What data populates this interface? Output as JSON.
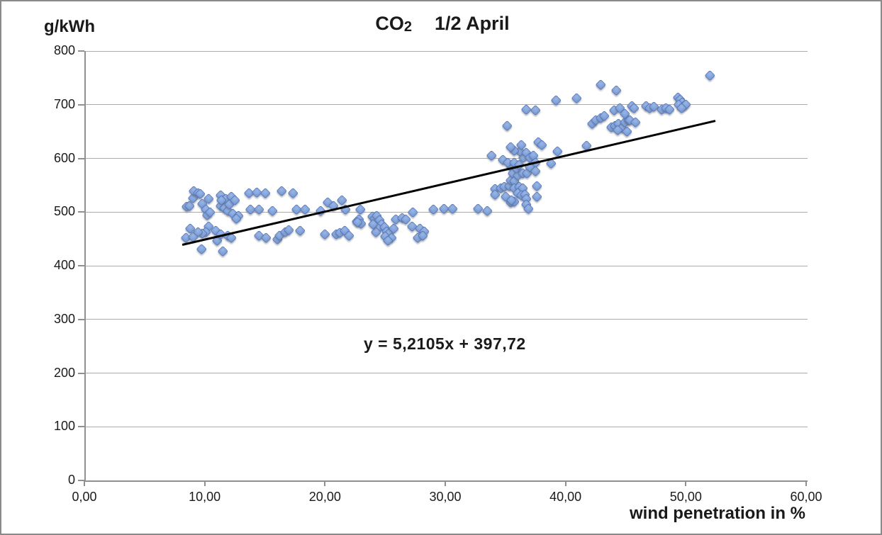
{
  "chart": {
    "y_axis_title": "g/kWh",
    "x_axis_title": "wind penetration in %",
    "title_co": "CO",
    "title_sub": "2",
    "title_period": "1/2 April",
    "equation": "y = 5,2105x + 397,72"
  },
  "chart_data": {
    "type": "scatter",
    "title": "CO2 1/2 April",
    "xlabel": "wind penetration in %",
    "ylabel": "g/kWh",
    "xlim": [
      0,
      60
    ],
    "ylim": [
      0,
      800
    ],
    "grid": "horizontal",
    "legend": "none",
    "marker_color": "#7C9ED8",
    "marker_border": "#5878B8",
    "x_ticks": [
      {
        "value": 0,
        "label": "0,00"
      },
      {
        "value": 10,
        "label": "10,00"
      },
      {
        "value": 20,
        "label": "20,00"
      },
      {
        "value": 30,
        "label": "30,00"
      },
      {
        "value": 40,
        "label": "40,00"
      },
      {
        "value": 50,
        "label": "50,00"
      },
      {
        "value": 60,
        "label": "60,00"
      }
    ],
    "y_ticks": [
      {
        "value": 0,
        "label": "0"
      },
      {
        "value": 100,
        "label": "100"
      },
      {
        "value": 200,
        "label": "200"
      },
      {
        "value": 300,
        "label": "300"
      },
      {
        "value": 400,
        "label": "400"
      },
      {
        "value": 500,
        "label": "500"
      },
      {
        "value": 600,
        "label": "600"
      },
      {
        "value": 700,
        "label": "700"
      },
      {
        "value": 800,
        "label": "800"
      }
    ],
    "trendline": {
      "equation": "y = 5,2105x + 397,72",
      "slope": 5.2105,
      "intercept": 397.72,
      "x_start": 8.0,
      "x_end": 52.3,
      "color": "#000000"
    },
    "points": [
      [
        8.4,
        510
      ],
      [
        8.6,
        512
      ],
      [
        8.9,
        527
      ],
      [
        9.0,
        540
      ],
      [
        9.3,
        535
      ],
      [
        9.5,
        534
      ],
      [
        9.7,
        516
      ],
      [
        10.0,
        505
      ],
      [
        10.1,
        495
      ],
      [
        10.3,
        500
      ],
      [
        10.2,
        525
      ],
      [
        10.2,
        473
      ],
      [
        10.0,
        463
      ],
      [
        9.7,
        461
      ],
      [
        9.3,
        463
      ],
      [
        8.7,
        470
      ],
      [
        8.3,
        452
      ],
      [
        8.9,
        454
      ],
      [
        9.6,
        432
      ],
      [
        10.8,
        466
      ],
      [
        10.9,
        447
      ],
      [
        11.2,
        459
      ],
      [
        11.8,
        457
      ],
      [
        12.1,
        452
      ],
      [
        11.4,
        428
      ],
      [
        11.2,
        532
      ],
      [
        11.6,
        525
      ],
      [
        12.1,
        529
      ],
      [
        11.2,
        512
      ],
      [
        11.5,
        508
      ],
      [
        11.8,
        503
      ],
      [
        12.2,
        497
      ],
      [
        12.7,
        493
      ],
      [
        12.5,
        488
      ],
      [
        11.3,
        523
      ],
      [
        11.9,
        514
      ],
      [
        12.4,
        522
      ],
      [
        13.6,
        536
      ],
      [
        14.2,
        537
      ],
      [
        14.9,
        536
      ],
      [
        16.3,
        539
      ],
      [
        17.2,
        536
      ],
      [
        13.7,
        505
      ],
      [
        14.4,
        505
      ],
      [
        15.5,
        503
      ],
      [
        17.5,
        505
      ],
      [
        18.2,
        505
      ],
      [
        14.4,
        456
      ],
      [
        15.9,
        450
      ],
      [
        16.1,
        457
      ],
      [
        16.6,
        463
      ],
      [
        16.9,
        467
      ],
      [
        17.8,
        466
      ],
      [
        15.0,
        452
      ],
      [
        19.5,
        503
      ],
      [
        20.1,
        518
      ],
      [
        20.6,
        512
      ],
      [
        21.3,
        523
      ],
      [
        21.6,
        505
      ],
      [
        19.9,
        459
      ],
      [
        20.8,
        459
      ],
      [
        21.1,
        462
      ],
      [
        21.5,
        466
      ],
      [
        21.9,
        457
      ],
      [
        22.5,
        483
      ],
      [
        22.7,
        487
      ],
      [
        22.9,
        479
      ],
      [
        22.8,
        505
      ],
      [
        22.6,
        481
      ],
      [
        23.8,
        492
      ],
      [
        24.0,
        488
      ],
      [
        24.2,
        493
      ],
      [
        24.4,
        485
      ],
      [
        24.6,
        478
      ],
      [
        24.3,
        470
      ],
      [
        24.8,
        472
      ],
      [
        25.0,
        465
      ],
      [
        25.2,
        461
      ],
      [
        24.9,
        455
      ],
      [
        25.4,
        452
      ],
      [
        25.1,
        447
      ],
      [
        25.6,
        470
      ],
      [
        25.8,
        487
      ],
      [
        26.3,
        490
      ],
      [
        26.6,
        487
      ],
      [
        24.1,
        463
      ],
      [
        23.9,
        477
      ],
      [
        27.2,
        500
      ],
      [
        27.1,
        474
      ],
      [
        27.8,
        470
      ],
      [
        28.1,
        464
      ],
      [
        27.6,
        452
      ],
      [
        28.0,
        456
      ],
      [
        28.9,
        505
      ],
      [
        29.8,
        507
      ],
      [
        30.5,
        507
      ],
      [
        32.6,
        507
      ],
      [
        33.4,
        503
      ],
      [
        33.7,
        605
      ],
      [
        34.0,
        543
      ],
      [
        34.5,
        545
      ],
      [
        34.8,
        547
      ],
      [
        34.9,
        529
      ],
      [
        34.0,
        533
      ],
      [
        35.0,
        661
      ],
      [
        35.3,
        519
      ],
      [
        35.2,
        549
      ],
      [
        35.3,
        560
      ],
      [
        35.4,
        585
      ],
      [
        35.5,
        572
      ],
      [
        35.6,
        558
      ],
      [
        35.6,
        545
      ],
      [
        35.9,
        569
      ],
      [
        36.3,
        573
      ],
      [
        36.7,
        572
      ],
      [
        35.8,
        582
      ],
      [
        36.0,
        547
      ],
      [
        36.3,
        545
      ],
      [
        35.9,
        536
      ],
      [
        36.2,
        532
      ],
      [
        36.5,
        533
      ],
      [
        36.6,
        525
      ],
      [
        35.6,
        520
      ],
      [
        35.4,
        523
      ],
      [
        36.6,
        514
      ],
      [
        36.8,
        507
      ],
      [
        34.7,
        598
      ],
      [
        35.1,
        593
      ],
      [
        35.6,
        593
      ],
      [
        36.0,
        589
      ],
      [
        36.4,
        602
      ],
      [
        36.1,
        613
      ],
      [
        35.6,
        615
      ],
      [
        35.3,
        622
      ],
      [
        36.2,
        626
      ],
      [
        36.6,
        611
      ],
      [
        36.9,
        602
      ],
      [
        37.2,
        606
      ],
      [
        37.4,
        593
      ],
      [
        37.6,
        631
      ],
      [
        37.9,
        626
      ],
      [
        36.9,
        585
      ],
      [
        37.4,
        576
      ],
      [
        37.5,
        549
      ],
      [
        37.5,
        529
      ],
      [
        38.7,
        591
      ],
      [
        39.2,
        613
      ],
      [
        36.6,
        692
      ],
      [
        37.4,
        690
      ],
      [
        39.1,
        708
      ],
      [
        40.8,
        712
      ],
      [
        41.6,
        624
      ],
      [
        42.1,
        665
      ],
      [
        42.4,
        671
      ],
      [
        42.8,
        675
      ],
      [
        43.1,
        679
      ],
      [
        42.8,
        738
      ],
      [
        44.1,
        727
      ],
      [
        43.7,
        658
      ],
      [
        44.0,
        661
      ],
      [
        44.3,
        665
      ],
      [
        44.6,
        657
      ],
      [
        44.2,
        653
      ],
      [
        45.0,
        651
      ],
      [
        44.8,
        668
      ],
      [
        45.1,
        671
      ],
      [
        43.9,
        690
      ],
      [
        44.4,
        694
      ],
      [
        44.8,
        684
      ],
      [
        45.4,
        698
      ],
      [
        45.6,
        694
      ],
      [
        45.2,
        671
      ],
      [
        45.7,
        668
      ],
      [
        46.6,
        698
      ],
      [
        46.9,
        694
      ],
      [
        47.2,
        697
      ],
      [
        47.9,
        692
      ],
      [
        48.2,
        694
      ],
      [
        48.5,
        692
      ],
      [
        49.2,
        714
      ],
      [
        49.4,
        710
      ],
      [
        49.6,
        705
      ],
      [
        49.3,
        701
      ],
      [
        49.7,
        698
      ],
      [
        49.9,
        701
      ],
      [
        49.5,
        694
      ],
      [
        51.9,
        755
      ]
    ]
  }
}
